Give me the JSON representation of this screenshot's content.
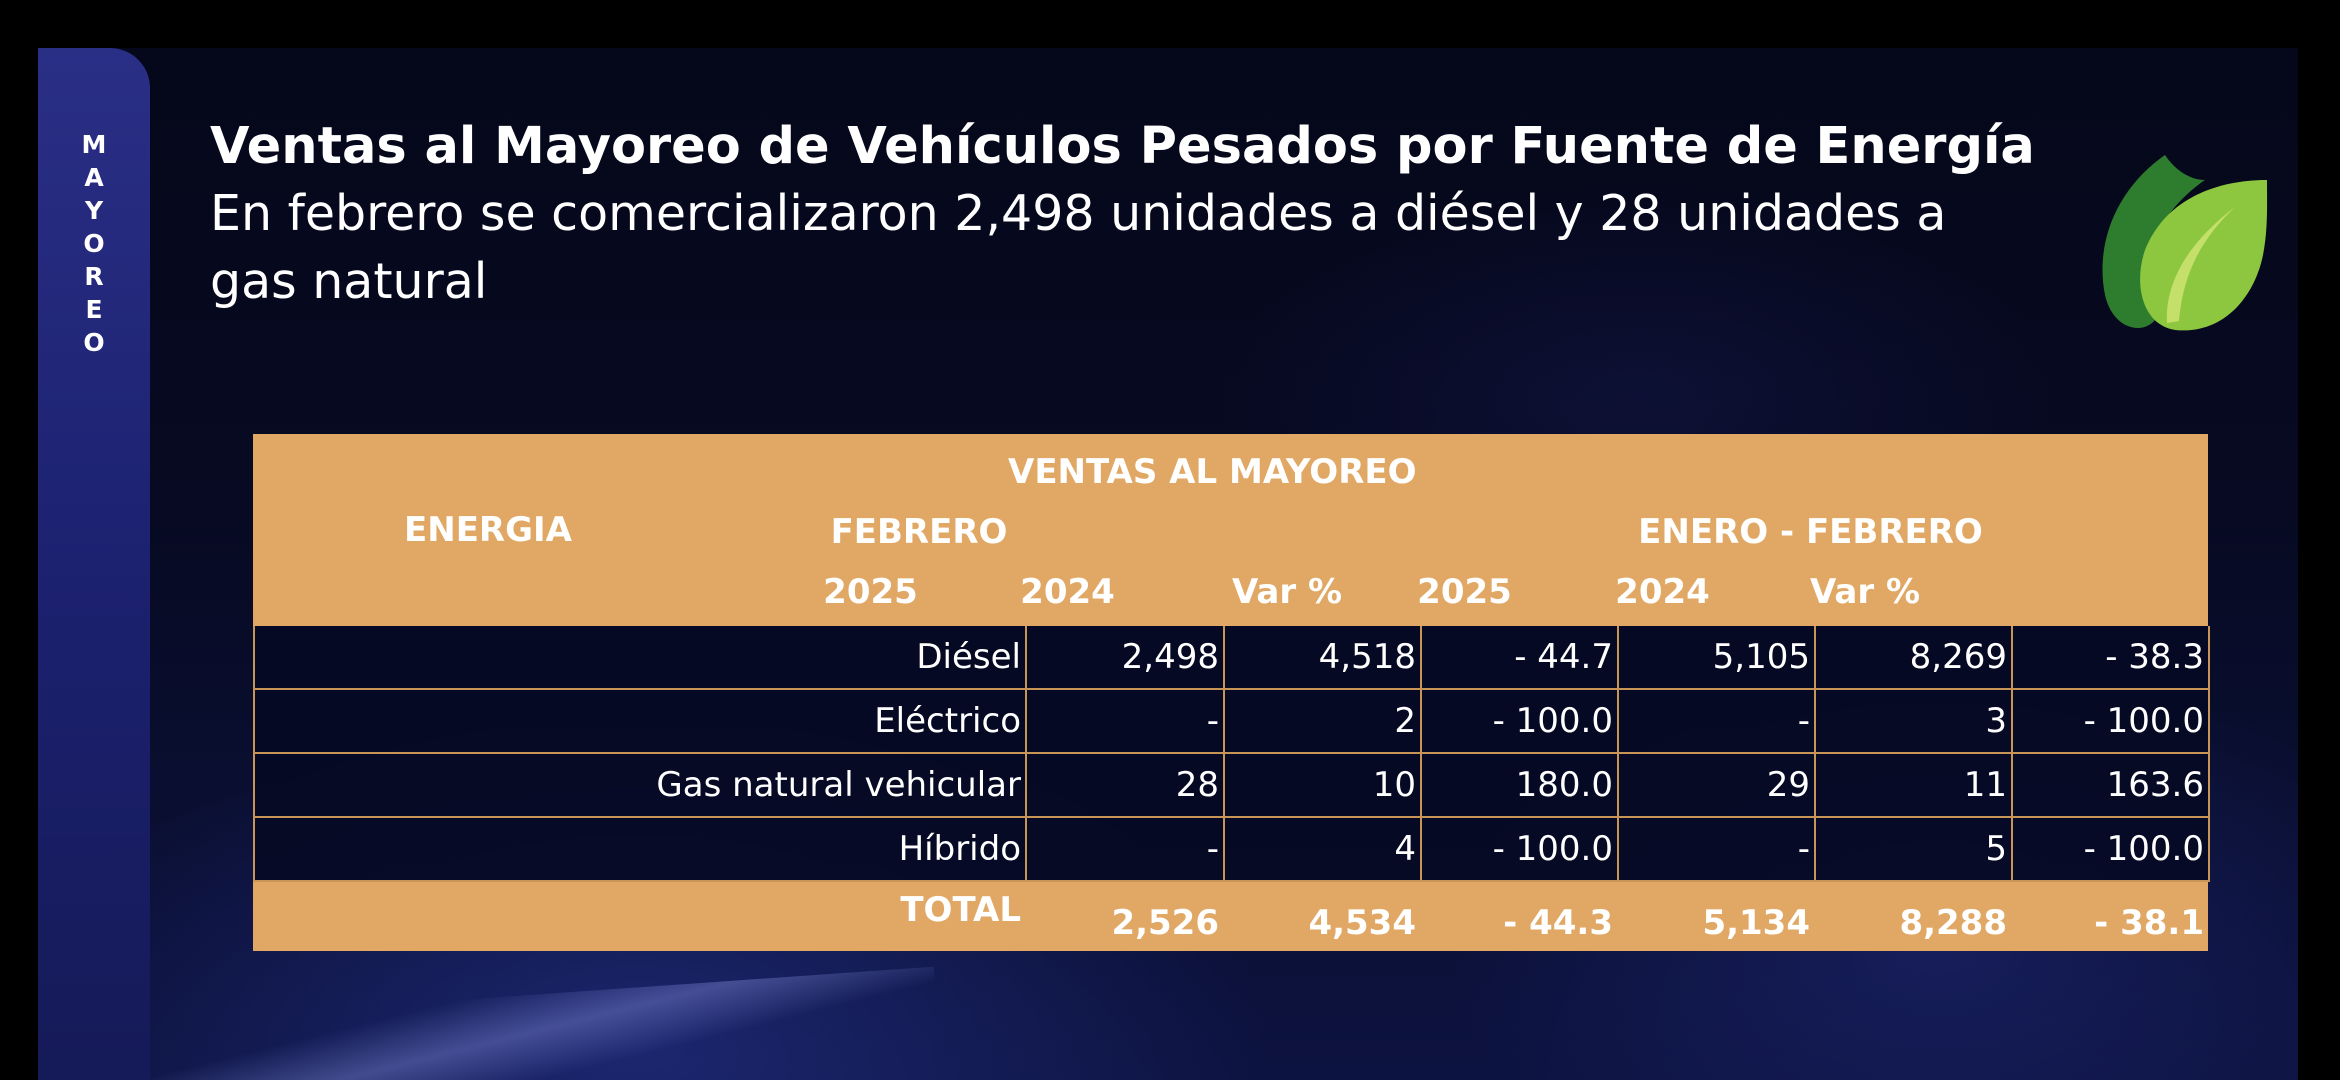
{
  "side_label": {
    "letters": [
      "M",
      "A",
      "Y",
      "O",
      "R",
      "E",
      "O"
    ]
  },
  "slide": {
    "title": "Ventas al Mayoreo de Vehículos Pesados por Fuente de Energía",
    "subtitle": "En febrero se comercializaron 2,498 unidades a diésel y 28 unidades a gas natural"
  },
  "icons": {
    "leaf": "leaf-icon",
    "leaf_colors": [
      "#2e7d2f",
      "#8dc63f",
      "#c5e06a"
    ]
  },
  "colors": {
    "table_header": "#e1a865",
    "table_body": "#060922",
    "text": "#ffffff",
    "side_tab": "#1c2170"
  },
  "table": {
    "super_header": "VENTAS AL MAYOREO",
    "energy_header": "ENERGIA",
    "group_1": "FEBRERO",
    "group_2": "ENERO - FEBRERO",
    "col_headers": [
      "2025",
      "2024",
      "Var %",
      "2025",
      "2024",
      "Var %"
    ],
    "rows": [
      {
        "label": "Diésel",
        "values": [
          "2,498",
          "4,518",
          "- 44.7",
          "5,105",
          "8,269",
          "- 38.3"
        ]
      },
      {
        "label": "Eléctrico",
        "values": [
          "-",
          "2",
          "- 100.0",
          "-",
          "3",
          "- 100.0"
        ]
      },
      {
        "label": "Gas natural vehicular",
        "values": [
          "28",
          "10",
          "180.0",
          "29",
          "11",
          "163.6"
        ]
      },
      {
        "label": "Híbrido",
        "values": [
          "-",
          "4",
          "- 100.0",
          "-",
          "5",
          "- 100.0"
        ]
      }
    ],
    "total": {
      "label": "TOTAL",
      "values": [
        "2,526",
        "4,534",
        "- 44.3",
        "5,134",
        "8,288",
        "- 38.1"
      ]
    }
  }
}
